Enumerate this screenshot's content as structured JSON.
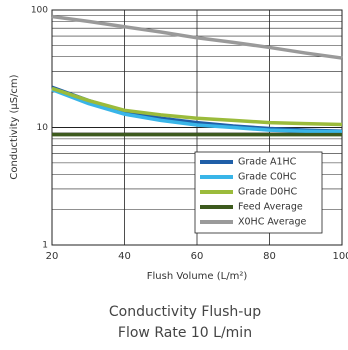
{
  "chart_data": {
    "type": "line",
    "title": "Conductivity Flush-up",
    "subtitle": "Flow Rate 10 L/min",
    "x_label": "Flush Volume (L/m²)",
    "y_label": "Conductivity (µS/cm)",
    "x": [
      20,
      30,
      40,
      50,
      60,
      70,
      80,
      90,
      100
    ],
    "series": [
      {
        "name": "Grade A1HC",
        "color": "#1f5fa8",
        "values": [
          22,
          17,
          13.5,
          12,
          11,
          10.3,
          9.8,
          9.5,
          9.3
        ]
      },
      {
        "name": "Grade C0HC",
        "color": "#39b5e8",
        "values": [
          21,
          16,
          13,
          11.5,
          10.5,
          10,
          9.5,
          9.3,
          9.2
        ]
      },
      {
        "name": "Grade D0HC",
        "color": "#9bbb3b",
        "values": [
          21.5,
          17,
          14,
          12.8,
          12,
          11.5,
          11,
          10.8,
          10.6
        ]
      },
      {
        "name": "Feed Average",
        "color": "#3d5a1e",
        "values": [
          8.7,
          8.7,
          8.7,
          8.7,
          8.7,
          8.7,
          8.7,
          8.7,
          8.7
        ]
      },
      {
        "name": "X0HC Average",
        "color": "#9a9a9a",
        "values": [
          88,
          80,
          72,
          65,
          58,
          53,
          48,
          43,
          39
        ]
      }
    ],
    "xlim": [
      20,
      100
    ],
    "xticks": [
      20,
      40,
      60,
      80,
      100
    ],
    "ylim": [
      1,
      100
    ],
    "yticks": [
      1,
      10,
      100
    ],
    "log_y": true,
    "grid": true,
    "legend": "lower right"
  }
}
